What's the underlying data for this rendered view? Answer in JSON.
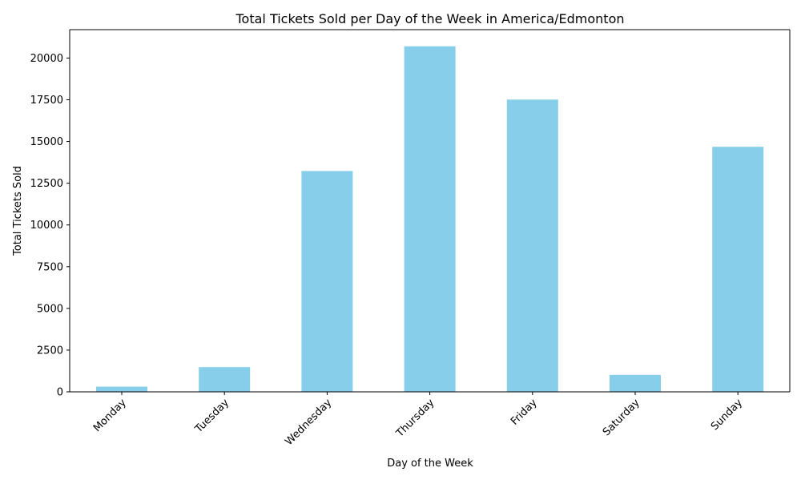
{
  "colors": {
    "bar": "#87ceeb",
    "axis": "#000000",
    "background": "#ffffff"
  },
  "chart_data": {
    "type": "bar",
    "title": "Total Tickets Sold per Day of the Week in America/Edmonton",
    "xlabel": "Day of the Week",
    "ylabel": "Total Tickets Sold",
    "categories": [
      "Monday",
      "Tuesday",
      "Wednesday",
      "Thursday",
      "Friday",
      "Saturday",
      "Sunday"
    ],
    "values": [
      310,
      1480,
      13230,
      20700,
      17510,
      1020,
      14680
    ],
    "ylim": [
      0,
      21700
    ],
    "yticks": [
      0,
      2500,
      5000,
      7500,
      10000,
      12500,
      15000,
      17500,
      20000
    ],
    "grid": false,
    "legend": "none"
  }
}
